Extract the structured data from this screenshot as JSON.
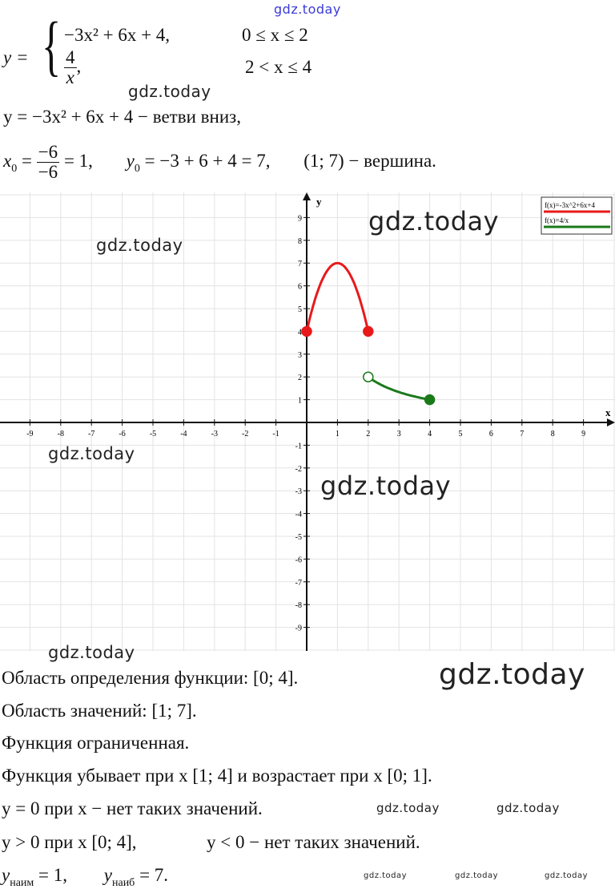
{
  "watermark": "gdz.today",
  "formula": {
    "lhs": "y =",
    "case1_expr": "−3x² + 6x + 4,",
    "case1_cond": "0 ≤ x ≤ 2",
    "case2_num": "4",
    "case2_den": "x",
    "case2_cond": "2 < x ≤ 4"
  },
  "line_branches": "y = −3x² + 6x + 4 − ветви вниз,",
  "vertex": {
    "x0_label": "x",
    "x0_num": "−6",
    "x0_den": "−6",
    "x0_result": "= 1,",
    "y0_expr": "= −3 + 6 + 4 = 7,",
    "vertex_text": "(1; 7) − вершина."
  },
  "chart_data": {
    "type": "line",
    "xlabel": "x",
    "ylabel": "y",
    "xlim": [
      -10,
      10
    ],
    "ylim": [
      -10,
      10
    ],
    "x_ticks": [
      -9,
      -8,
      -7,
      -6,
      -5,
      -4,
      -3,
      -2,
      -1,
      1,
      2,
      3,
      4,
      5,
      6,
      7,
      8,
      9
    ],
    "y_ticks": [
      -9,
      -8,
      -7,
      -6,
      -5,
      -4,
      -3,
      -2,
      -1,
      1,
      2,
      3,
      4,
      5,
      6,
      7,
      8,
      9
    ],
    "grid": true,
    "legend_position": "top-right",
    "series": [
      {
        "name": "f(x)=-3x^2+6x+4",
        "color": "#e8191a",
        "domain": [
          0,
          2
        ],
        "points": [
          [
            0,
            4
          ],
          [
            0.25,
            5.3125
          ],
          [
            0.5,
            6.25
          ],
          [
            0.75,
            6.8125
          ],
          [
            1,
            7
          ],
          [
            1.25,
            6.8125
          ],
          [
            1.5,
            6.25
          ],
          [
            1.75,
            5.3125
          ],
          [
            2,
            4
          ]
        ],
        "endpoints": [
          {
            "x": 0,
            "y": 4,
            "filled": true
          },
          {
            "x": 2,
            "y": 4,
            "filled": true
          }
        ]
      },
      {
        "name": "f(x)=4/x",
        "color": "#1a7a1a",
        "domain": [
          2,
          4
        ],
        "points": [
          [
            2,
            2
          ],
          [
            2.5,
            1.6
          ],
          [
            3,
            1.333
          ],
          [
            3.5,
            1.143
          ],
          [
            4,
            1
          ]
        ],
        "endpoints": [
          {
            "x": 2,
            "y": 2,
            "filled": false
          },
          {
            "x": 4,
            "y": 1,
            "filled": true
          }
        ]
      }
    ]
  },
  "conclusions": {
    "domain": "Область определения функции: [0; 4].",
    "range": "Область значений: [1; 7].",
    "bounded": "Функция ограниченная.",
    "monotonic": "Функция убывает при x [1; 4] и возрастает при x [0; 1].",
    "zeros": "y = 0 при x − нет таких значений.",
    "sign_pos": "y > 0 при x [0; 4],",
    "sign_neg": "y < 0 − нет таких значений.",
    "min_label": "наим",
    "min_value": "= 1,",
    "max_label": "наиб",
    "max_value": "= 7."
  }
}
